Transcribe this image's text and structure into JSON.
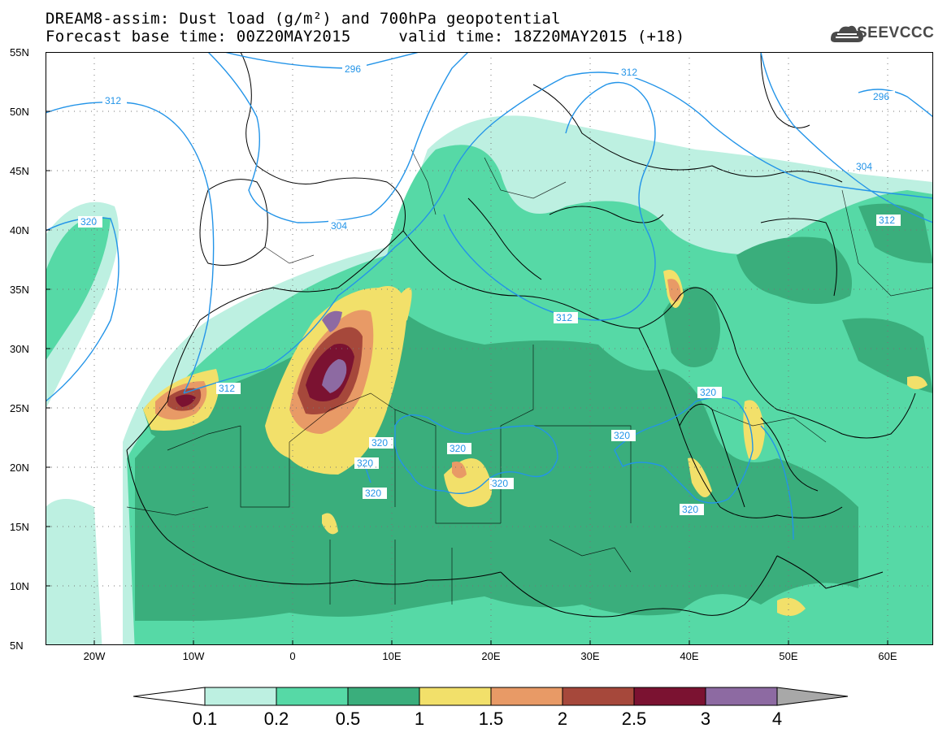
{
  "header": {
    "line1": "DREAM8-assim: Dust load (g/m²) and 700hPa geopotential",
    "line2": "Forecast base time: 00Z20MAY2015     valid time: 18Z20MAY2015 (+18)"
  },
  "logo": {
    "text": "SEEVCCC",
    "icon": "cloud-logo-icon"
  },
  "map": {
    "lat_labels": [
      "55N",
      "50N",
      "45N",
      "40N",
      "35N",
      "30N",
      "25N",
      "20N",
      "15N",
      "10N",
      "5N"
    ],
    "lon_labels": [
      "20W",
      "10W",
      "0",
      "10E",
      "20E",
      "30E",
      "40E",
      "50E",
      "60E"
    ],
    "contour_labels": [
      "296",
      "312",
      "312",
      "320",
      "304",
      "312",
      "312",
      "320",
      "320",
      "320",
      "320",
      "320",
      "320",
      "320",
      "320",
      "320",
      "296",
      "304",
      "312"
    ],
    "colors": {
      "c0": "#bdf0e1",
      "c1": "#56d9a6",
      "c2": "#3aae7c",
      "c3": "#f2e06a",
      "c4": "#e89a66",
      "c5": "#a6483b",
      "c6": "#7b1231",
      "c7": "#8d6aa2",
      "c8": "#a8a8a8",
      "contour": "#2394e8",
      "coast": "#000000"
    }
  },
  "colorbar": {
    "labels": [
      "0.1",
      "0.2",
      "0.5",
      "1",
      "1.5",
      "2",
      "2.5",
      "3",
      "4"
    ]
  }
}
